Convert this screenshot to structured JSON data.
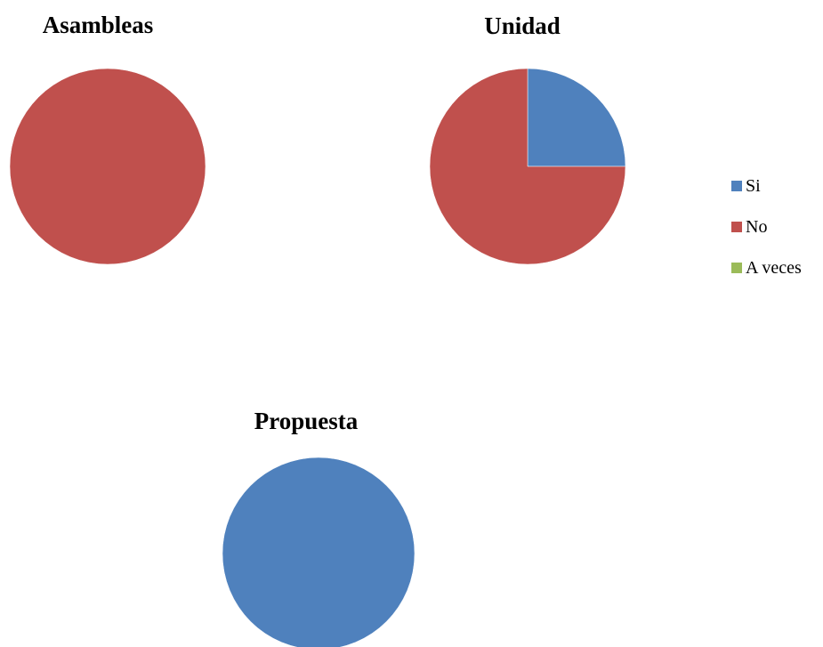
{
  "legend": {
    "entries": [
      {
        "label": "Si",
        "color": "#4F81BD"
      },
      {
        "label": "No",
        "color": "#C0504D"
      },
      {
        "label": "A veces",
        "color": "#9BBB59"
      }
    ]
  },
  "chart_data": [
    {
      "type": "pie",
      "title": "Asambleas",
      "categories": [
        "Si",
        "No",
        "A veces"
      ],
      "values": [
        0,
        100,
        0
      ]
    },
    {
      "type": "pie",
      "title": "Unidad",
      "categories": [
        "Si",
        "No",
        "A veces"
      ],
      "values": [
        25,
        75,
        0
      ]
    },
    {
      "type": "pie",
      "title": "Propuesta",
      "categories": [
        "Si",
        "No",
        "A veces"
      ],
      "values": [
        100,
        0,
        0
      ]
    }
  ]
}
